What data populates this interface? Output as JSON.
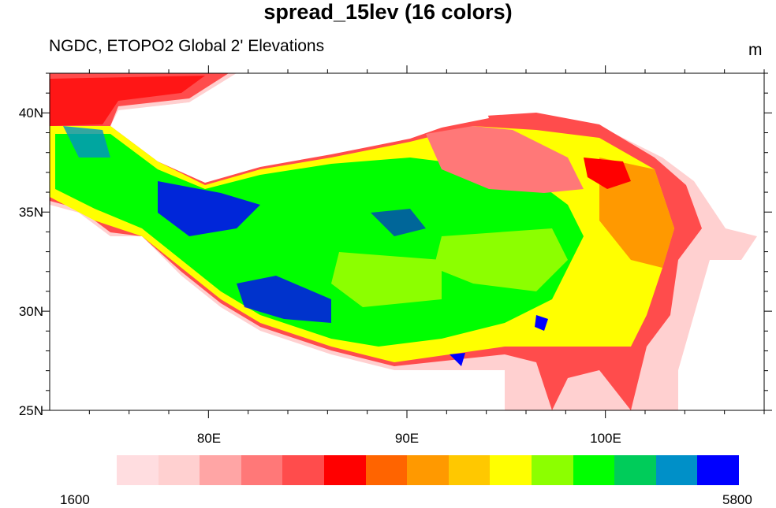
{
  "title": "spread_15lev (16 colors)",
  "subtitle": "NGDC, ETOPO2 Global 2' Elevations",
  "units": "m",
  "map": {
    "projection": "cylindrical-equidistant",
    "lon_range": [
      72,
      108
    ],
    "lat_range": [
      25,
      42
    ],
    "x_ticks": [
      "80E",
      "90E",
      "100E"
    ],
    "y_ticks": [
      "25N",
      "30N",
      "35N",
      "40N"
    ]
  },
  "colorbar": {
    "min_label": "1600",
    "max_label": "5800",
    "colors": [
      "#FFDDE0",
      "#FFD0D0",
      "#FFA5A5",
      "#FF7878",
      "#FF4C4C",
      "#FF0000",
      "#FF6400",
      "#FF9900",
      "#FFC800",
      "#FFFF00",
      "#8CFF00",
      "#00FF00",
      "#00CC5A",
      "#0090C8",
      "#0000FF"
    ]
  }
}
